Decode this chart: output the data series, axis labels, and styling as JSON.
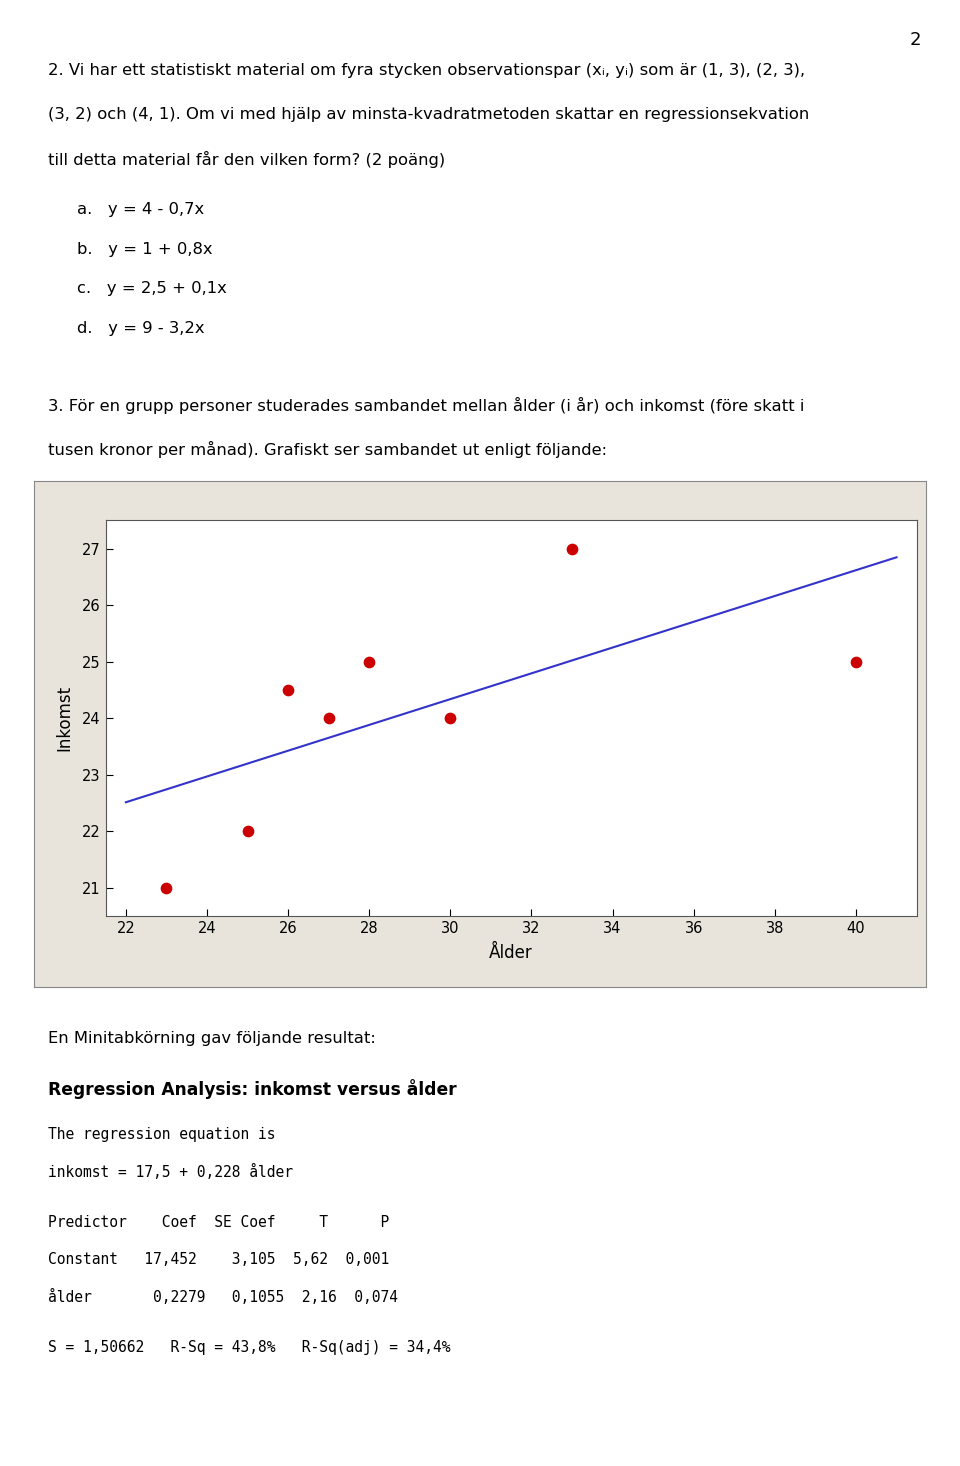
{
  "page_number": "2",
  "q2_line1": "2. Vi har ett statistiskt material om fyra stycken observationspar (x",
  "q2_line1b": ", y",
  "q2_line1c": ") som är (1, 3), (2, 3),",
  "q2_line2": "(3, 2) och (4, 1). Om vi med hjälp av minsta-kvadratmetoden skattar en regressionsekvation",
  "q2_line3": "till detta material får den vilken form? (2 poäng)",
  "options": [
    "a.   y = 4 - 0,7x",
    "b.   y = 1 + 0,8x",
    "c.   y = 2,5 + 0,1x",
    "d.   y = 9 - 3,2x"
  ],
  "q3_line1": "3. För en grupp personer studerades sambandet mellan ålder (i år) och inkomst (före skatt i",
  "q3_line2": "tusen kronor per månad). Grafiskt ser sambandet ut enligt följande:",
  "scatter_x": [
    23,
    25,
    26,
    27,
    28,
    30,
    33,
    40
  ],
  "scatter_y": [
    21,
    22,
    24.5,
    24,
    25,
    24,
    27,
    25
  ],
  "regression_intercept": 17.5,
  "regression_slope": 0.228,
  "reg_x_start": 22,
  "reg_x_end": 41,
  "scatter_color": "#CC0000",
  "line_color": "#3333CC",
  "xlabel": "Ålder",
  "ylabel": "Inkomst",
  "xlim": [
    21.5,
    41.5
  ],
  "ylim": [
    20.5,
    27.5
  ],
  "xticks": [
    22,
    24,
    26,
    28,
    30,
    32,
    34,
    36,
    38,
    40
  ],
  "yticks": [
    21,
    22,
    23,
    24,
    25,
    26,
    27
  ],
  "plot_bg_color": "#FFFFFF",
  "outer_bg_color": "#E8E4DC",
  "page_bg_color": "#FFFFFF",
  "scatter_size": 55,
  "minitab_intro": "En Minitabkörning gav följande resultat:",
  "minitab_title": "Regression Analysis: inkomst versus ålder",
  "minitab_line1": "The regression equation is",
  "minitab_line2": "inkomst = 17,5 + 0,228 ålder",
  "minitab_line3": "Predictor    Coef  SE Coef     T      P",
  "minitab_line4": "Constant   17,452    3,105  5,62  0,001",
  "minitab_line5": "ålder       0,2279   0,1055  2,16  0,074",
  "minitab_line6": "S = 1,50662   R-Sq = 43,8%   R-Sq(adj) = 34,4%"
}
